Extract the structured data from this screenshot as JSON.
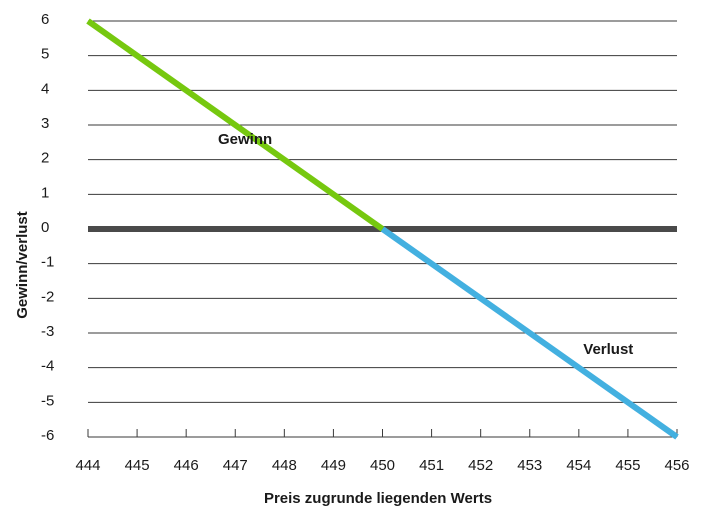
{
  "chart_data": {
    "type": "line",
    "xlabel": "Preis zugrunde liegenden Werts",
    "ylabel": "Gewinn/verlust",
    "xlim": [
      444,
      456
    ],
    "ylim": [
      -6,
      6
    ],
    "x_ticks": [
      "444",
      "445",
      "446",
      "447",
      "448",
      "449",
      "450",
      "451",
      "452",
      "453",
      "454",
      "455",
      "456"
    ],
    "y_ticks": [
      "6",
      "5",
      "4",
      "3",
      "2",
      "1",
      "0",
      "-1",
      "-2",
      "-3",
      "-4",
      "-5",
      "-6"
    ],
    "grid": "horizontal",
    "series": [
      {
        "x": [
          444,
          450
        ],
        "y": [
          6,
          0
        ],
        "color": "#76c80f"
      },
      {
        "x": [
          450,
          456
        ],
        "y": [
          0,
          -6
        ],
        "color": "#43b0e0"
      }
    ],
    "zero_line_color": "#4a4a4a",
    "gridline_color": "#3a3a3a",
    "annotations": [
      {
        "text": "Gewinn",
        "x": 447.2,
        "y": 2.45
      },
      {
        "text": "Verlust",
        "x": 454.6,
        "y": -3.6
      }
    ]
  }
}
